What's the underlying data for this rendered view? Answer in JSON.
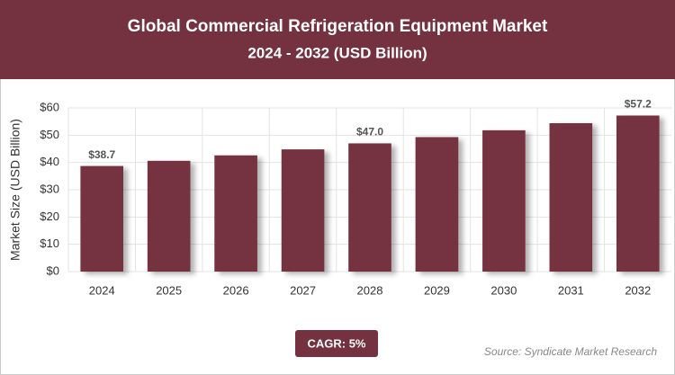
{
  "chart_data": {
    "type": "bar",
    "title": "Global Commercial Refrigeration Equipment Market",
    "subtitle": "2024 - 2032 (USD Billion)",
    "y_label": "Market Size (USD Billion)",
    "categories": [
      "2024",
      "2025",
      "2026",
      "2027",
      "2028",
      "2029",
      "2030",
      "2031",
      "2032"
    ],
    "values": [
      38.7,
      40.6,
      42.6,
      44.8,
      47.0,
      49.3,
      51.8,
      54.4,
      57.2
    ],
    "value_labels": [
      "$38.7",
      null,
      null,
      null,
      "$47.0",
      null,
      null,
      null,
      "$57.2"
    ],
    "color": "#74313f",
    "ylim": [
      0,
      60
    ],
    "yticks": [
      {
        "value": 0,
        "label": "$0"
      },
      {
        "value": 10,
        "label": "$10"
      },
      {
        "value": 20,
        "label": "$20"
      },
      {
        "value": 30,
        "label": "$30"
      },
      {
        "value": 40,
        "label": "$40"
      },
      {
        "value": 50,
        "label": "$50"
      },
      {
        "value": 60,
        "label": "$60"
      }
    ],
    "grid": true,
    "cagr": "CAGR: 5%",
    "source": "Source: Syndicate Market Research"
  }
}
